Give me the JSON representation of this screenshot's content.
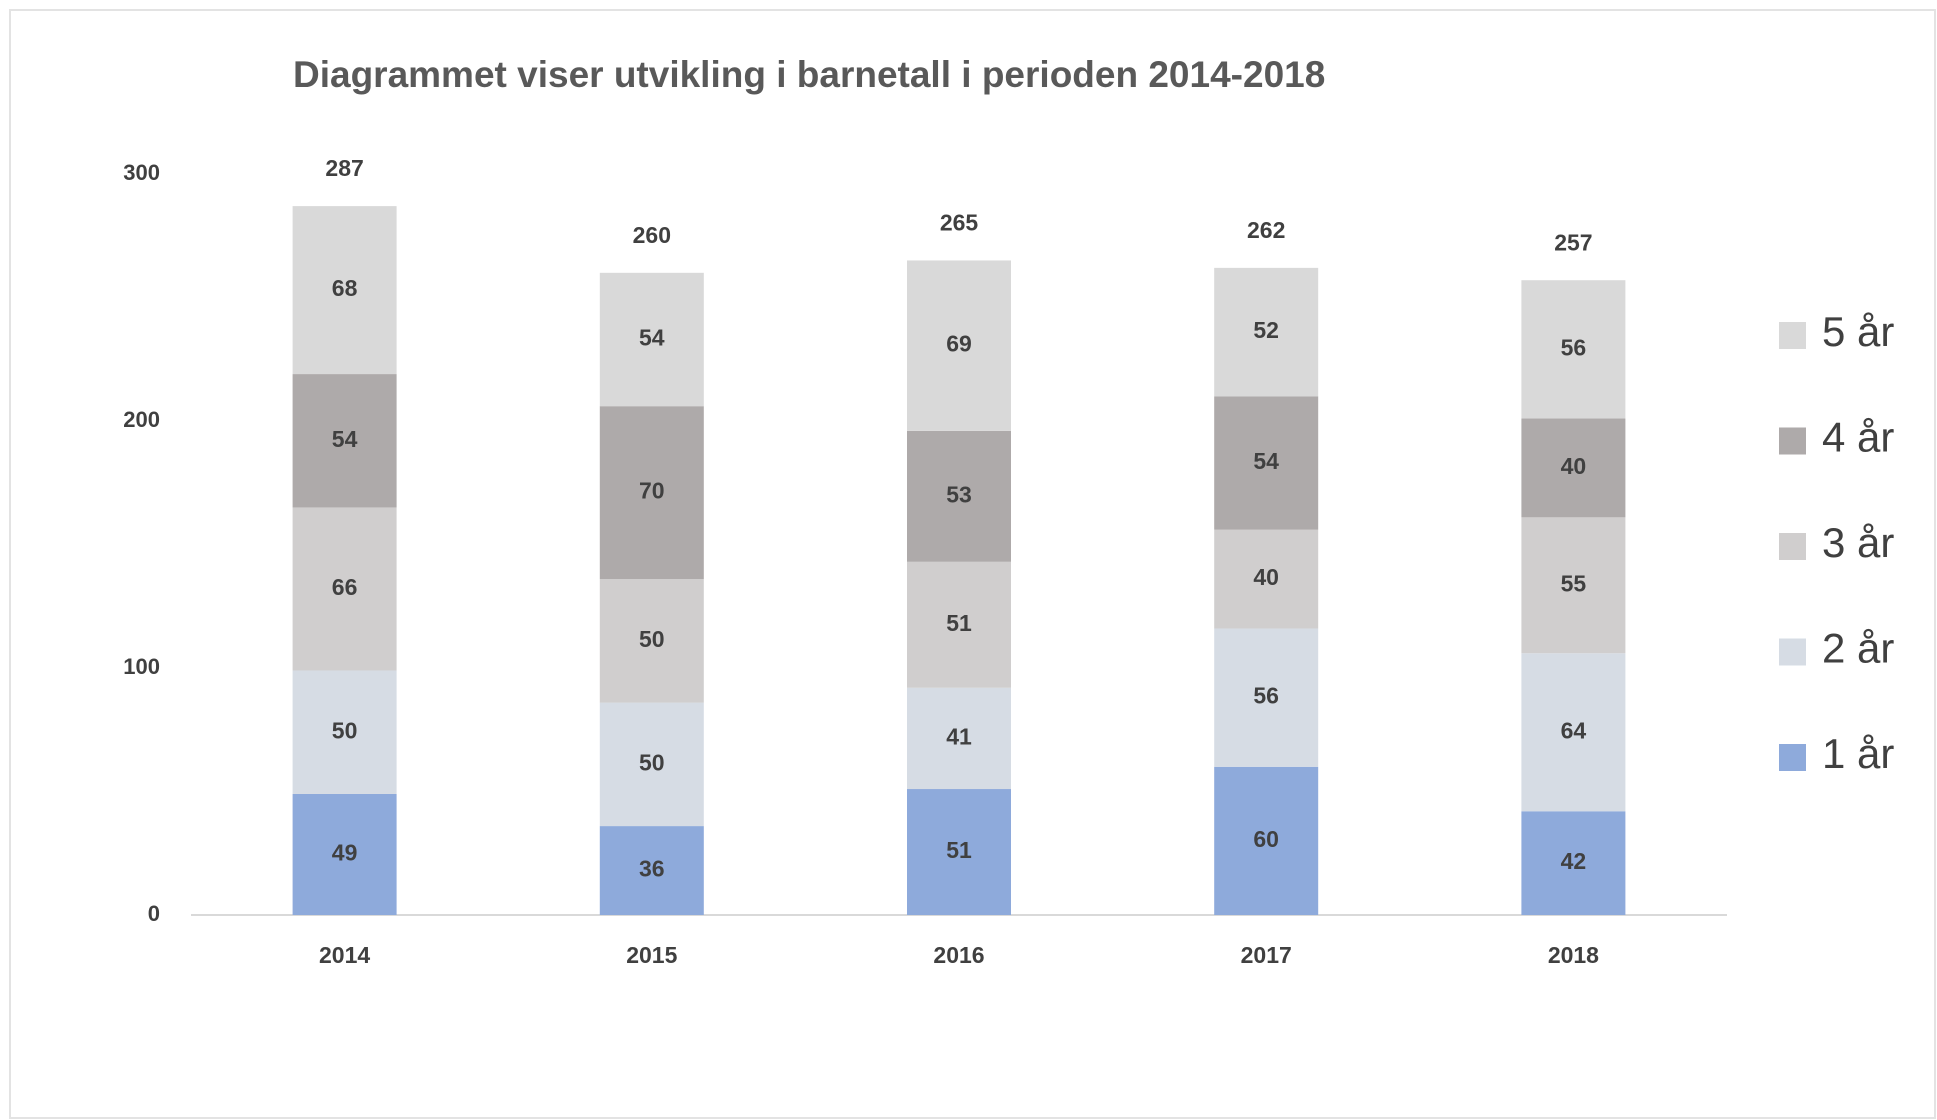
{
  "chart_data": {
    "type": "stacked_bar",
    "title": "Diagrammet viser utvikling i barnetall i perioden 2014-2018",
    "categories": [
      "2014",
      "2015",
      "2016",
      "2017",
      "2018"
    ],
    "series": [
      {
        "name": "1 år",
        "color": "#8eaadb",
        "values": [
          49,
          36,
          51,
          60,
          42
        ]
      },
      {
        "name": "2 år",
        "color": "#d6dce4",
        "values": [
          50,
          50,
          41,
          56,
          64
        ]
      },
      {
        "name": "3 år",
        "color": "#d0cece",
        "values": [
          66,
          50,
          51,
          40,
          55
        ]
      },
      {
        "name": "4 år",
        "color": "#aeaaaa",
        "values": [
          54,
          70,
          53,
          54,
          40
        ]
      },
      {
        "name": "5 år",
        "color": "#d9d9d9",
        "values": [
          68,
          54,
          69,
          52,
          56
        ]
      }
    ],
    "totals": [
      287,
      260,
      265,
      262,
      257
    ],
    "ylim": [
      0,
      300
    ],
    "yticks": [
      0,
      100,
      200,
      300
    ],
    "grid": false,
    "legend": "right"
  }
}
